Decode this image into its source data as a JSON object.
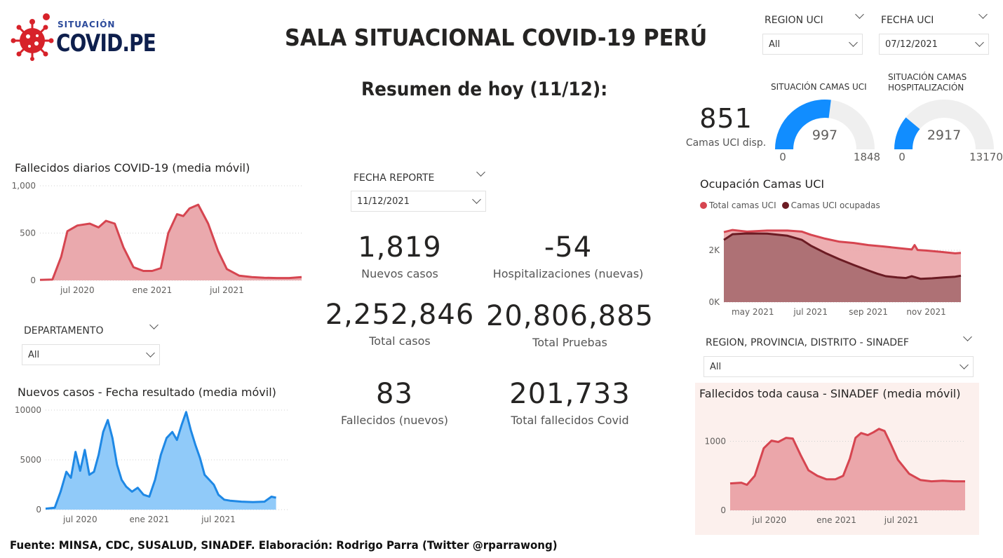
{
  "header": {
    "logo_top": "SITUACIÓN",
    "logo_main": "COVID.PE",
    "title": "SALA SITUACIONAL COVID-19 PERÚ",
    "subtitle": "Resumen de hoy (11/12):"
  },
  "filters": {
    "region_uci": {
      "label": "REGION UCI",
      "value": "All"
    },
    "fecha_uci": {
      "label": "FECHA UCI",
      "value": "07/12/2021"
    },
    "fecha_reporte": {
      "label": "FECHA REPORTE",
      "value": "11/12/2021"
    },
    "departamento": {
      "label": "DEPARTAMENTO",
      "value": "All"
    },
    "sinadef_region": {
      "label": "REGION, PROVINCIA, DISTRITO - SINADEF",
      "value": "All"
    }
  },
  "kpis": {
    "nuevos_casos": {
      "value": "1,819",
      "label": "Nuevos casos"
    },
    "hospitalizaciones": {
      "value": "-54",
      "label": "Hospitalizaciones (nuevas)"
    },
    "total_casos": {
      "value": "2,252,846",
      "label": "Total casos"
    },
    "total_pruebas": {
      "value": "20,806,885",
      "label": "Total Pruebas"
    },
    "fallecidos_nuevos": {
      "value": "83",
      "label": "Fallecidos (nuevos)"
    },
    "total_fallecidos": {
      "value": "201,733",
      "label": "Total fallecidos Covid"
    },
    "camas_uci_disp": {
      "value": "851",
      "label": "Camas UCI disp."
    }
  },
  "gauges": {
    "uci": {
      "title": "SITUACIÓN CAMAS UCI",
      "value": 997,
      "value_label": "997",
      "min_label": "0",
      "max_label": "1848",
      "min": 0,
      "max": 1848,
      "color": "#118DFF"
    },
    "hosp": {
      "title": "SITUACIÓN CAMAS HOSPITALIZACIÓN",
      "value": 2917,
      "value_label": "2917",
      "min_label": "0",
      "max_label": "13170",
      "min": 0,
      "max": 13170,
      "color": "#118DFF"
    }
  },
  "chart_data": [
    {
      "id": "fallecidos",
      "type": "area",
      "title": "Fallecidos diarios COVID-19 (media móvil)",
      "x_ticks": [
        "jul 2020",
        "ene 2021",
        "jul 2021"
      ],
      "y_ticks": [
        "0",
        "500",
        "1,000"
      ],
      "ylim": [
        0,
        1000
      ],
      "x_range": [
        0,
        21
      ],
      "x_tick_positions": [
        3,
        9,
        15
      ],
      "color": "#D64550",
      "fill": "#EAA9AD",
      "x": [
        0,
        1,
        1.7,
        2.2,
        3,
        4,
        4.7,
        5.3,
        6,
        6.7,
        7.5,
        8.3,
        9,
        9.7,
        10.3,
        11,
        11.5,
        12,
        12.7,
        13.5,
        14.3,
        15,
        16,
        17,
        18,
        19,
        20,
        21
      ],
      "values": [
        5,
        10,
        250,
        520,
        580,
        600,
        560,
        630,
        600,
        350,
        140,
        100,
        100,
        130,
        500,
        700,
        680,
        760,
        800,
        600,
        310,
        120,
        50,
        35,
        28,
        25,
        25,
        35
      ]
    },
    {
      "id": "nuevos_casos",
      "type": "area",
      "title": "Nuevos casos - Fecha resultado (media móvil)",
      "x_ticks": [
        "jul 2020",
        "ene 2021",
        "jul 2021"
      ],
      "y_ticks": [
        "0",
        "5000",
        "10000"
      ],
      "ylim": [
        0,
        10000
      ],
      "x_range": [
        0,
        21
      ],
      "x_tick_positions": [
        3,
        9,
        15
      ],
      "color": "#1E88E5",
      "fill": "#90CAF9",
      "x": [
        0,
        0.8,
        1.3,
        1.8,
        2.2,
        2.6,
        3.0,
        3.4,
        3.8,
        4.2,
        4.6,
        5.0,
        5.4,
        5.8,
        6.2,
        6.6,
        7.0,
        7.5,
        8.0,
        8.5,
        9.0,
        9.5,
        10.0,
        10.5,
        11.0,
        11.4,
        11.8,
        12.2,
        12.6,
        13.0,
        13.4,
        13.8,
        14.2,
        14.6,
        15.0,
        15.5,
        16.0,
        17,
        18,
        19,
        19.6,
        20
      ],
      "values": [
        100,
        200,
        1800,
        3800,
        3200,
        5800,
        3900,
        6000,
        3500,
        3800,
        5500,
        7800,
        9000,
        7200,
        4500,
        3000,
        2300,
        1800,
        2200,
        1500,
        1300,
        3000,
        5500,
        7200,
        7800,
        7000,
        8500,
        9800,
        8000,
        6500,
        5200,
        3500,
        3000,
        2500,
        1500,
        1000,
        900,
        800,
        750,
        800,
        1300,
        1200
      ]
    },
    {
      "id": "ocupacion_uci",
      "type": "area",
      "title": "Ocupación Camas UCI",
      "legend": [
        "Total camas UCI",
        "Camas UCI ocupadas"
      ],
      "x_ticks": [
        "may 2021",
        "jul 2021",
        "sep 2021",
        "nov 2021"
      ],
      "y_ticks": [
        "0K",
        "2K"
      ],
      "ylim": [
        0,
        3000
      ],
      "x_range": [
        0,
        8.2
      ],
      "x_tick_positions": [
        1,
        3,
        5,
        7
      ],
      "series": [
        {
          "name": "Total camas UCI",
          "color": "#D64550",
          "fill": "#EBA6AA",
          "x": [
            0,
            0.3,
            0.8,
            1.5,
            2.2,
            2.7,
            3.0,
            3.5,
            4.0,
            4.5,
            5.0,
            5.5,
            6.0,
            6.5,
            6.6,
            6.7,
            7.0,
            7.5,
            8.0,
            8.2
          ],
          "values": [
            2700,
            2780,
            2720,
            2760,
            2760,
            2720,
            2600,
            2450,
            2330,
            2280,
            2200,
            2150,
            2090,
            2030,
            2200,
            2010,
            1990,
            1940,
            1880,
            1900
          ]
        },
        {
          "name": "Camas UCI ocupadas",
          "color": "#6B1B23",
          "fill": "#A66A6E",
          "x": [
            0,
            0.3,
            0.8,
            1.5,
            2.2,
            2.7,
            3.0,
            3.5,
            4.0,
            4.5,
            5.0,
            5.3,
            5.6,
            6.0,
            6.3,
            6.5,
            6.8,
            7.2,
            7.6,
            8.0,
            8.2
          ],
          "values": [
            2400,
            2620,
            2650,
            2640,
            2560,
            2400,
            2180,
            1900,
            1650,
            1430,
            1220,
            1100,
            1000,
            950,
            930,
            1000,
            900,
            920,
            950,
            980,
            1020
          ]
        }
      ]
    },
    {
      "id": "sinadef",
      "type": "area",
      "title": "Fallecidos toda causa - SINADEF (media móvil)",
      "x_ticks": [
        "jul 2020",
        "ene 2021",
        "jul 2021"
      ],
      "y_ticks": [
        "0",
        "1000"
      ],
      "ylim": [
        0,
        1300
      ],
      "x_range": [
        0,
        21
      ],
      "x_tick_positions": [
        3.5,
        9.5,
        15.3
      ],
      "color": "#D64550",
      "fill": "#EBA6AA",
      "x": [
        0,
        1,
        1.5,
        2.2,
        3,
        3.7,
        4.3,
        5,
        5.6,
        6.3,
        7,
        7.8,
        8.6,
        9.4,
        10.1,
        10.7,
        11.2,
        11.7,
        12.3,
        12.8,
        13.3,
        13.8,
        14.3,
        15,
        16,
        17,
        18,
        19,
        20,
        21
      ],
      "values": [
        390,
        400,
        370,
        500,
        900,
        1010,
        990,
        1050,
        1040,
        800,
        580,
        500,
        450,
        450,
        500,
        750,
        1050,
        1120,
        1090,
        1130,
        1180,
        1150,
        980,
        730,
        530,
        440,
        420,
        430,
        420,
        420
      ]
    }
  ],
  "footer": {
    "text": "Fuente: MINSA, CDC, SUSALUD, SINADEF. Elaboración: Rodrigo Parra (Twitter @rparrawong)"
  }
}
